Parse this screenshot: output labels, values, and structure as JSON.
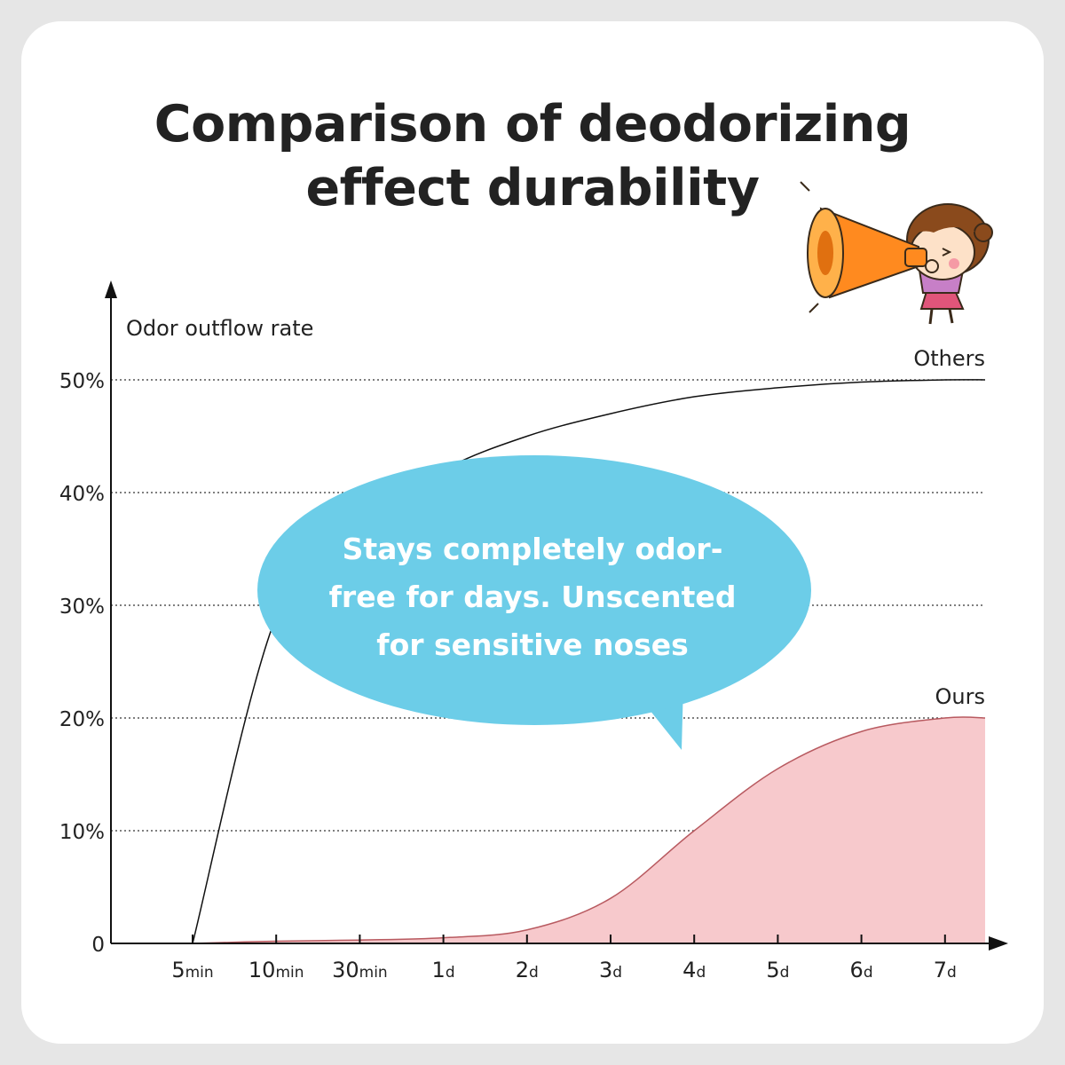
{
  "title": {
    "line1": "Comparison of deodorizing",
    "line2": "effect durability"
  },
  "callout": {
    "line1": "Stays completely odor-",
    "line2": "free for days. Unscented",
    "line3": "for sensitive noses"
  },
  "colors": {
    "bubble": "#6ccde8",
    "ours_fill": "#f7c9cc",
    "ours_line": "#b85a60",
    "others_line": "#111111",
    "megaphone": "#ff8a1f"
  },
  "illustration": {
    "icon": "megaphone-girl-icon"
  },
  "chart_data": {
    "type": "line",
    "ylabel": "Odor outflow rate",
    "yticks": [
      {
        "value": 0,
        "label": "0"
      },
      {
        "value": 10,
        "label": "10%"
      },
      {
        "value": 20,
        "label": "20%"
      },
      {
        "value": 30,
        "label": "30%"
      },
      {
        "value": 40,
        "label": "40%"
      },
      {
        "value": 50,
        "label": "50%"
      }
    ],
    "ylim": [
      0,
      50
    ],
    "grid": "dotted horizontal",
    "x": [
      {
        "num": "5",
        "unit": "min"
      },
      {
        "num": "10",
        "unit": "min"
      },
      {
        "num": "30",
        "unit": "min"
      },
      {
        "num": "1",
        "unit": "d"
      },
      {
        "num": "2",
        "unit": "d"
      },
      {
        "num": "3",
        "unit": "d"
      },
      {
        "num": "4",
        "unit": "d"
      },
      {
        "num": "5",
        "unit": "d"
      },
      {
        "num": "6",
        "unit": "d"
      },
      {
        "num": "7",
        "unit": "d"
      }
    ],
    "series": [
      {
        "name": "Others",
        "style": "line",
        "values": [
          0,
          29,
          37,
          42,
          45,
          47,
          48.5,
          49.3,
          49.8,
          50
        ]
      },
      {
        "name": "Ours",
        "style": "area",
        "values": [
          0,
          0.2,
          0.3,
          0.5,
          1.2,
          4,
          10,
          15.5,
          18.8,
          20
        ]
      }
    ]
  }
}
